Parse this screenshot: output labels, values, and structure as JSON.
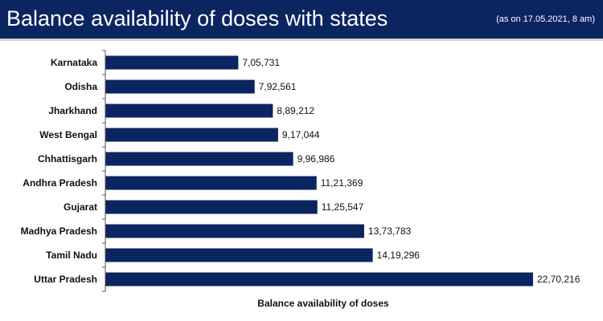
{
  "header": {
    "title": "Balance availability of doses with states",
    "date_note": "(as on 17.05.2021, 8 am)"
  },
  "colors": {
    "header_bg": "#0b2560",
    "bar": "#0b2560"
  },
  "chart_data": {
    "type": "bar",
    "orientation": "horizontal",
    "title": "Balance availability of doses with states",
    "xlabel": "Balance availability of doses",
    "ylabel": "",
    "xlim": [
      0,
      2270216
    ],
    "grid": false,
    "categories": [
      "Karnataka",
      "Odisha",
      "Jharkhand",
      "West Bengal",
      "Chhattisgarh",
      "Andhra Pradesh",
      "Gujarat",
      "Madhya Pradesh",
      "Tamil Nadu",
      "Uttar Pradesh"
    ],
    "values": [
      705731,
      792561,
      889212,
      917044,
      996986,
      1121369,
      1125547,
      1373783,
      1419296,
      2270216
    ],
    "labels": [
      "7,05,731",
      "7,92,561",
      "8,89,212",
      "9,17,044",
      "9,96,986",
      "11,21,369",
      "11,25,547",
      "13,73,783",
      "14,19,296",
      "22,70,216"
    ]
  }
}
